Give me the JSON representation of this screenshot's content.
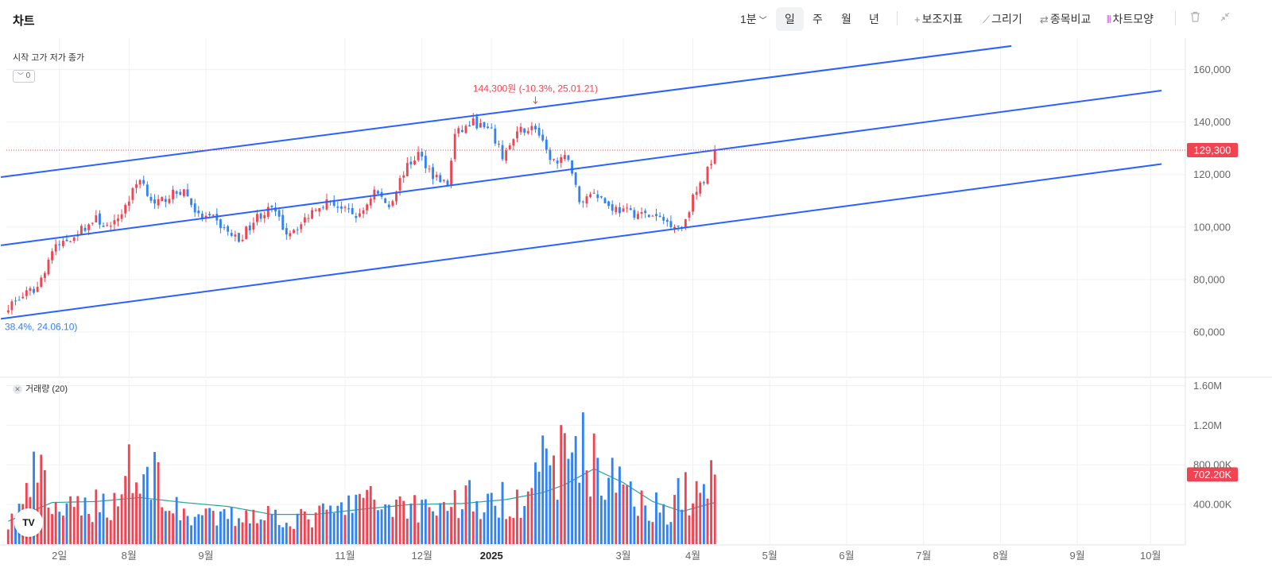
{
  "toolbar": {
    "title": "차트",
    "interval": "1분",
    "periods": [
      "일",
      "주",
      "월",
      "년"
    ],
    "tools": [
      {
        "icon": "plus-icon",
        "glyph": "+",
        "label": "보조지표"
      },
      {
        "icon": "pencil-icon",
        "glyph": "⟋",
        "label": "그리기"
      },
      {
        "icon": "compare-icon",
        "glyph": "⇄",
        "label": "종목비교"
      },
      {
        "icon": "candle-icon",
        "glyph": "⫴",
        "label": "차트모양"
      }
    ],
    "delete_icon": "trash-icon",
    "collapse_icon": "minimize-icon"
  },
  "legend": {
    "ohlc_label": "시작 고가 저가 종가",
    "collapse_value": "0"
  },
  "volume_legend": {
    "label": "거래량 (20)"
  },
  "logo_text": "TV",
  "chart_data": {
    "type": "candlestick",
    "colors": {
      "up": "#f04452",
      "down": "#3182f6",
      "channel": "#2962ff",
      "ma": "#26a69a",
      "grid": "#eef0f3"
    },
    "price_axis": {
      "ticks": [
        60000,
        80000,
        100000,
        120000,
        140000,
        160000
      ],
      "tick_labels": [
        "60,000",
        "80,000",
        "100,000",
        "120,000",
        "140,000",
        "160,000"
      ],
      "range": [
        43000,
        172000
      ]
    },
    "volume_axis": {
      "ticks": [
        400000,
        800000,
        1200000,
        1600000
      ],
      "tick_labels": [
        "400.00K",
        "800.00K",
        "1.20M",
        "1.60M"
      ],
      "range": [
        0,
        1660000
      ]
    },
    "time_axis": {
      "labels": [
        {
          "i": 14,
          "text": "2일"
        },
        {
          "i": 33,
          "text": "8월"
        },
        {
          "i": 54,
          "text": "9월"
        },
        {
          "i": 92,
          "text": "11월"
        },
        {
          "i": 113,
          "text": "12월"
        },
        {
          "i": 132,
          "text": "2025",
          "bold": true
        },
        {
          "i": 168,
          "text": "3월"
        },
        {
          "i": 187,
          "text": "4월"
        },
        {
          "i": 208,
          "text": "5월"
        },
        {
          "i": 229,
          "text": "6월"
        },
        {
          "i": 250,
          "text": "7월"
        },
        {
          "i": 271,
          "text": "8월"
        },
        {
          "i": 292,
          "text": "9월"
        },
        {
          "i": 312,
          "text": "10월"
        }
      ],
      "total_slots": 322
    },
    "last_price": {
      "value": 129300,
      "label": "129,300"
    },
    "last_volume": {
      "value": 702200,
      "label": "702.20K"
    },
    "high_annotation": {
      "text": "144,300원 (-10.3%, 25.01.21)",
      "i": 144,
      "value": 144300
    },
    "low_annotation": {
      "text": "38.4%, 24.06.10)",
      "i": 0,
      "value": 65000
    },
    "channel": {
      "top": {
        "from": {
          "i": -2,
          "v": 119000
        },
        "to": {
          "i": 274,
          "v": 169000
        }
      },
      "mid": {
        "from": {
          "i": -2,
          "v": 93000
        },
        "to": {
          "i": 315,
          "v": 152000
        }
      },
      "bottom": {
        "from": {
          "i": -2,
          "v": 65000
        },
        "to": {
          "i": 315,
          "v": 124000
        }
      }
    },
    "price_anchors": [
      [
        0,
        70000
      ],
      [
        8,
        77000
      ],
      [
        12,
        91000
      ],
      [
        16,
        95000
      ],
      [
        20,
        99000
      ],
      [
        24,
        103000
      ],
      [
        28,
        99000
      ],
      [
        32,
        108000
      ],
      [
        36,
        119000
      ],
      [
        40,
        108000
      ],
      [
        44,
        112000
      ],
      [
        48,
        114000
      ],
      [
        52,
        104000
      ],
      [
        56,
        103000
      ],
      [
        60,
        98000
      ],
      [
        63,
        95000
      ],
      [
        68,
        104000
      ],
      [
        72,
        107000
      ],
      [
        76,
        98000
      ],
      [
        80,
        101000
      ],
      [
        84,
        108000
      ],
      [
        88,
        110000
      ],
      [
        92,
        106000
      ],
      [
        96,
        104000
      ],
      [
        100,
        114000
      ],
      [
        104,
        108000
      ],
      [
        108,
        121000
      ],
      [
        112,
        128000
      ],
      [
        116,
        120000
      ],
      [
        120,
        116000
      ],
      [
        122,
        135000
      ],
      [
        127,
        140000
      ],
      [
        132,
        136000
      ],
      [
        135,
        127000
      ],
      [
        140,
        137000
      ],
      [
        144,
        138000
      ],
      [
        147,
        128000
      ],
      [
        150,
        124000
      ],
      [
        153,
        127000
      ],
      [
        156,
        109000
      ],
      [
        160,
        114000
      ],
      [
        164,
        108000
      ],
      [
        168,
        106000
      ],
      [
        172,
        105000
      ],
      [
        176,
        104000
      ],
      [
        180,
        102000
      ],
      [
        184,
        100000
      ],
      [
        187,
        111000
      ],
      [
        190,
        118000
      ],
      [
        193,
        129300
      ]
    ],
    "volume_anchors": [
      [
        0,
        200000
      ],
      [
        5,
        450000
      ],
      [
        8,
        780000
      ],
      [
        11,
        420000
      ],
      [
        16,
        320000
      ],
      [
        22,
        400000
      ],
      [
        30,
        420000
      ],
      [
        33,
        900000
      ],
      [
        36,
        500000
      ],
      [
        40,
        800000
      ],
      [
        44,
        350000
      ],
      [
        50,
        300000
      ],
      [
        56,
        250000
      ],
      [
        62,
        280000
      ],
      [
        68,
        330000
      ],
      [
        74,
        280000
      ],
      [
        80,
        250000
      ],
      [
        86,
        300000
      ],
      [
        92,
        350000
      ],
      [
        96,
        480000
      ],
      [
        100,
        400000
      ],
      [
        106,
        420000
      ],
      [
        112,
        380000
      ],
      [
        116,
        400000
      ],
      [
        120,
        380000
      ],
      [
        126,
        500000
      ],
      [
        130,
        350000
      ],
      [
        136,
        450000
      ],
      [
        140,
        480000
      ],
      [
        144,
        900000
      ],
      [
        148,
        650000
      ],
      [
        152,
        950000
      ],
      [
        156,
        1050000
      ],
      [
        160,
        800000
      ],
      [
        164,
        600000
      ],
      [
        168,
        700000
      ],
      [
        172,
        500000
      ],
      [
        176,
        380000
      ],
      [
        180,
        350000
      ],
      [
        184,
        550000
      ],
      [
        188,
        450000
      ],
      [
        193,
        702200
      ]
    ],
    "ma_anchors": [
      [
        0,
        230000
      ],
      [
        12,
        420000
      ],
      [
        24,
        430000
      ],
      [
        36,
        470000
      ],
      [
        48,
        420000
      ],
      [
        60,
        380000
      ],
      [
        72,
        300000
      ],
      [
        84,
        300000
      ],
      [
        96,
        350000
      ],
      [
        110,
        400000
      ],
      [
        124,
        410000
      ],
      [
        136,
        450000
      ],
      [
        146,
        520000
      ],
      [
        152,
        600000
      ],
      [
        160,
        760000
      ],
      [
        168,
        620000
      ],
      [
        176,
        430000
      ],
      [
        184,
        330000
      ],
      [
        193,
        420000
      ]
    ]
  }
}
